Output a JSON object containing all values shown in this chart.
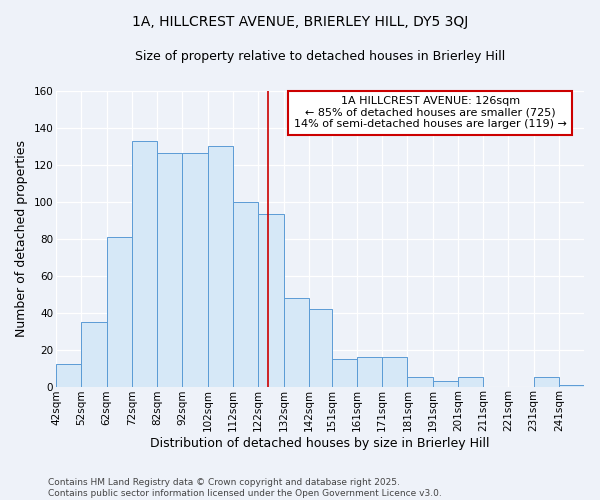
{
  "title_line1": "1A, HILLCREST AVENUE, BRIERLEY HILL, DY5 3QJ",
  "title_line2": "Size of property relative to detached houses in Brierley Hill",
  "xlabel": "Distribution of detached houses by size in Brierley Hill",
  "ylabel": "Number of detached properties",
  "bins": [
    42,
    52,
    62,
    72,
    82,
    92,
    102,
    112,
    122,
    132,
    142,
    151,
    161,
    171,
    181,
    191,
    201,
    211,
    221,
    231,
    241,
    251
  ],
  "counts": [
    12,
    35,
    81,
    133,
    126,
    126,
    130,
    100,
    93,
    48,
    42,
    15,
    16,
    16,
    5,
    3,
    5,
    0,
    0,
    5,
    1
  ],
  "bar_color": "#d6e8f7",
  "bar_edge_color": "#5b9bd5",
  "vline_x": 126,
  "vline_color": "#cc0000",
  "annotation_text": "1A HILLCREST AVENUE: 126sqm\n← 85% of detached houses are smaller (725)\n14% of semi-detached houses are larger (119) →",
  "annotation_box_color": "#ffffff",
  "annotation_box_edge": "#cc0000",
  "ylim": [
    0,
    160
  ],
  "yticks": [
    0,
    20,
    40,
    60,
    80,
    100,
    120,
    140,
    160
  ],
  "tick_labels": [
    "42sqm",
    "52sqm",
    "62sqm",
    "72sqm",
    "82sqm",
    "92sqm",
    "102sqm",
    "112sqm",
    "122sqm",
    "132sqm",
    "142sqm",
    "151sqm",
    "161sqm",
    "171sqm",
    "181sqm",
    "191sqm",
    "201sqm",
    "211sqm",
    "221sqm",
    "231sqm",
    "241sqm"
  ],
  "footer": "Contains HM Land Registry data © Crown copyright and database right 2025.\nContains public sector information licensed under the Open Government Licence v3.0.",
  "bg_color": "#eef2f9",
  "grid_color": "#ffffff",
  "title_fontsize": 10,
  "subtitle_fontsize": 9,
  "axis_label_fontsize": 9,
  "tick_fontsize": 7.5,
  "annotation_fontsize": 8,
  "footer_fontsize": 6.5
}
